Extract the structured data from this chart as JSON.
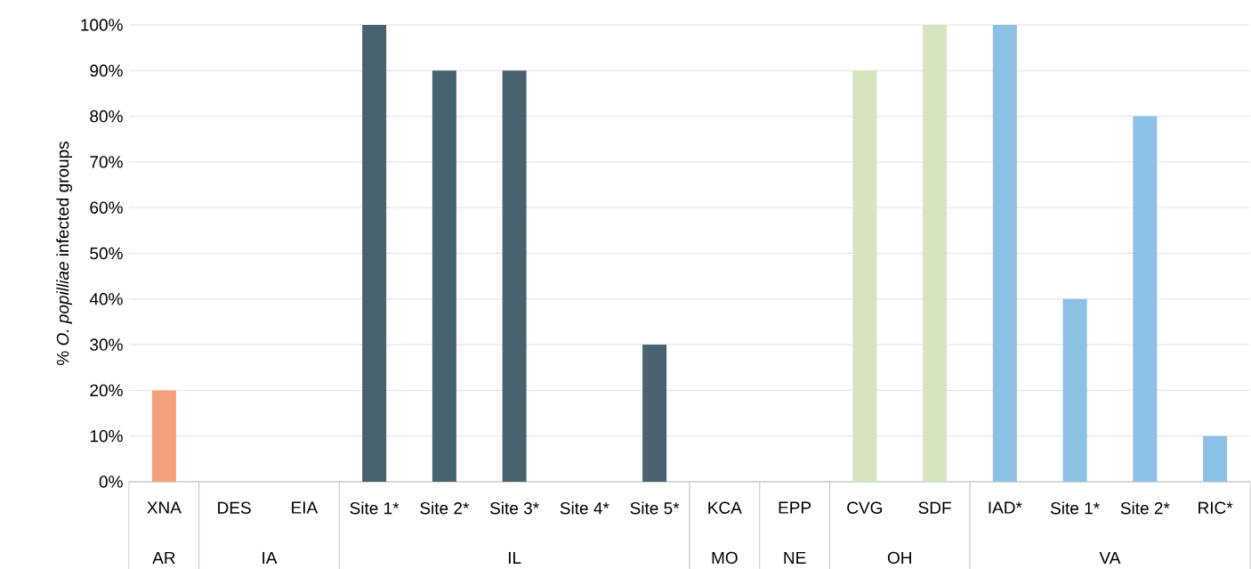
{
  "chart_data": {
    "type": "bar",
    "ylabel": "% *O. popilliae* infected groups",
    "categories": [
      "XNA",
      "DES",
      "EIA",
      "Site 1*",
      "Site 2*",
      "Site 3*",
      "Site 4*",
      "Site 5*",
      "KCA",
      "EPP",
      "CVG",
      "SDF",
      "IAD*",
      "Site 1*",
      "Site 2*",
      "RIC*"
    ],
    "values": [
      20,
      0,
      0,
      100,
      90,
      90,
      0,
      30,
      0,
      0,
      90,
      100,
      100,
      40,
      80,
      10
    ],
    "colors": [
      "#f4a07a",
      "#48636f",
      "#48636f",
      "#48636f",
      "#48636f",
      "#48636f",
      "#48636f",
      "#48636f",
      "#48636f",
      "#48636f",
      "#d6e5bf",
      "#d6e5bf",
      "#8dc0e5",
      "#8dc0e5",
      "#8dc0e5",
      "#8dc0e5"
    ],
    "ylim": [
      0,
      100
    ],
    "yticks": [
      {
        "value": 0,
        "label": "0%"
      },
      {
        "value": 10,
        "label": "10%"
      },
      {
        "value": 20,
        "label": "20%"
      },
      {
        "value": 30,
        "label": "30%"
      },
      {
        "value": 40,
        "label": "40%"
      },
      {
        "value": 50,
        "label": "50%"
      },
      {
        "value": 60,
        "label": "60%"
      },
      {
        "value": 70,
        "label": "70%"
      },
      {
        "value": 80,
        "label": "80%"
      },
      {
        "value": 90,
        "label": "90%"
      },
      {
        "value": 100,
        "label": "100%"
      }
    ],
    "grid": "y",
    "annotations": [
      "AR",
      "IA",
      "IL",
      "MO",
      "NE",
      "OH",
      "VA"
    ]
  }
}
